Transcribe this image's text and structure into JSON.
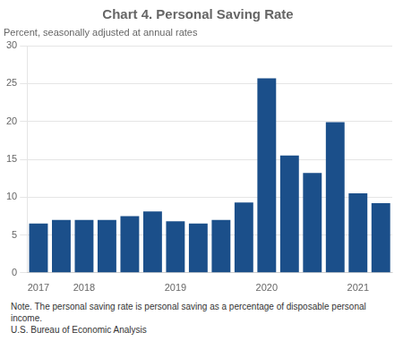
{
  "chart_data": {
    "type": "bar",
    "title": "Chart 4. Personal Saving Rate",
    "subtitle": "Percent, seasonally adjusted at annual rates",
    "annotations": [
      "Note. The personal saving rate is personal saving as a percentage of disposable personal income.",
      "U.S. Bureau of Economic Analysis"
    ],
    "categories": [
      "2017",
      null,
      "2018",
      null,
      null,
      null,
      "2019",
      null,
      null,
      null,
      "2020",
      null,
      null,
      null,
      "2021",
      null
    ],
    "values": [
      6.5,
      7.0,
      7.0,
      7.0,
      7.5,
      8.1,
      6.8,
      6.5,
      7.0,
      9.3,
      25.7,
      15.5,
      13.2,
      19.9,
      10.5,
      9.2
    ],
    "color": "#1B4F8A",
    "ylim": [
      0,
      30
    ],
    "yticks": [
      0,
      5,
      10,
      15,
      20,
      25,
      30
    ],
    "grid": true
  }
}
